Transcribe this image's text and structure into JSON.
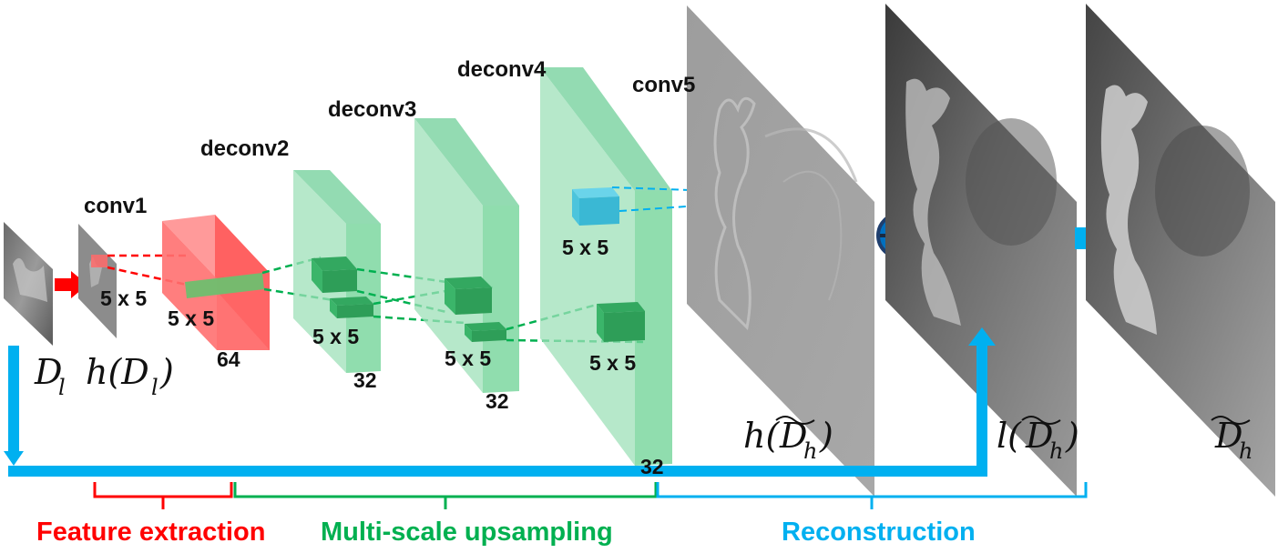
{
  "layers": {
    "conv1": "conv1",
    "deconv2": "deconv2",
    "deconv3": "deconv3",
    "deconv4": "deconv4",
    "conv5": "conv5"
  },
  "kernels": {
    "conv1": "5 x 5",
    "red_block": "5 x 5",
    "deconv2": "5 x 5",
    "deconv3": "5 x 5",
    "deconv4": "5 x 5",
    "conv5": "5 x 5"
  },
  "channels": {
    "deconv1": "64",
    "deconv2": "32",
    "deconv3": "32",
    "deconv4": "32"
  },
  "math": {
    "input": "D",
    "input_sub": "l",
    "h_input_prefix": "h(D",
    "h_input_sub": "l",
    "h_input_suffix": ")",
    "h_out_prefix": "h(",
    "h_out_D": "D",
    "h_out_sub": "h",
    "h_out_suffix": ")",
    "l_out_prefix": "l(",
    "l_out_D": "D",
    "l_out_sub": "h",
    "l_out_suffix": ")",
    "final_D": "D",
    "final_sub": "h"
  },
  "stages": {
    "feature": "Feature extraction",
    "upsampling": "Multi-scale upsampling",
    "reconstruction": "Reconstruction"
  },
  "colors": {
    "red": "#ff0000",
    "green": "#00b050",
    "blue": "#00b0f0",
    "cube_red": "#ff6a6a",
    "cube_green": "#7dd6a0",
    "cube_blue": "#4ac8e0"
  }
}
